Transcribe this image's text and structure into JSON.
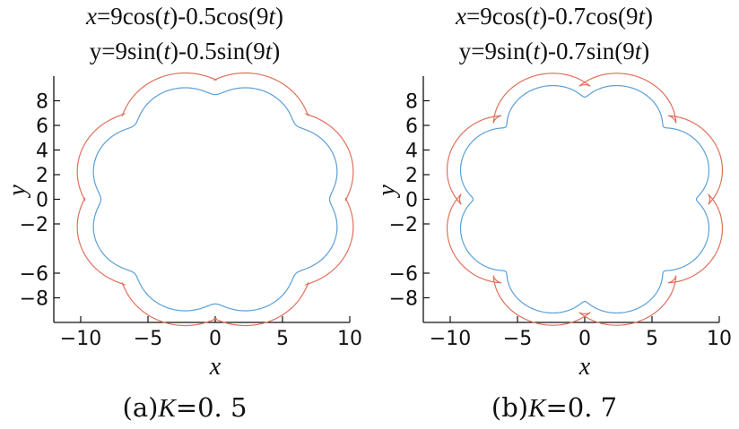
{
  "chart_data": [
    {
      "type": "line",
      "panel": "a",
      "equation_x": {
        "lhs": "x",
        "pre": "=9cos(",
        "t1": "t",
        "mid": ")-0.5cos(9",
        "t2": "t",
        "post": ")"
      },
      "equation_y": {
        "lhs": "y",
        "pre": "=9sin(",
        "t1": "t",
        "mid": ")-0.5sin(9",
        "t2": "t",
        "post": ")"
      },
      "caption": {
        "prefix": "(a)",
        "k": "K",
        "value": "=0. 5"
      },
      "xlabel": "x",
      "ylabel": "y",
      "xlim": [
        -12,
        10
      ],
      "ylim": [
        -10,
        10
      ],
      "xticks": [
        -10,
        -5,
        0,
        5,
        10
      ],
      "xtick_labels": [
        "−10",
        "−5",
        "0",
        "5",
        "10"
      ],
      "yticks": [
        8,
        6,
        4,
        2,
        0,
        -2,
        -6,
        -8
      ],
      "ytick_labels": [
        "8",
        "6",
        "4",
        "2",
        "0",
        "−2",
        "−6",
        "−8"
      ],
      "grid": false,
      "K": 0.5,
      "series": [
        {
          "color": "#e0705c",
          "a": 9,
          "b": 0.5,
          "n": 9,
          "offset": 1.2,
          "rotation_deg": 0
        },
        {
          "color": "#5b9fd6",
          "a": 9,
          "b": 0.5,
          "n": 9,
          "offset": 0,
          "rotation_deg": 0
        }
      ]
    },
    {
      "type": "line",
      "panel": "b",
      "equation_x": {
        "lhs": "x",
        "pre": "=9cos(",
        "t1": "t",
        "mid": ")-0.7cos(9",
        "t2": "t",
        "post": ")"
      },
      "equation_y": {
        "lhs": "y",
        "pre": "=9sin(",
        "t1": "t",
        "mid": ")-0.7sin(9",
        "t2": "t",
        "post": ")"
      },
      "caption": {
        "prefix": "(b)",
        "k": "K",
        "value": "=0. 7"
      },
      "xlabel": "x",
      "ylabel": "y",
      "xlim": [
        -12,
        10
      ],
      "ylim": [
        -10,
        10
      ],
      "xticks": [
        -10,
        -5,
        0,
        5,
        10
      ],
      "xtick_labels": [
        "−10",
        "−5",
        "0",
        "5",
        "10"
      ],
      "yticks": [
        8,
        6,
        4,
        2,
        0,
        -2,
        -6,
        -8
      ],
      "ytick_labels": [
        "8",
        "6",
        "4",
        "2",
        "0",
        "−2",
        "−6",
        "−8"
      ],
      "grid": false,
      "K": 0.7,
      "series": [
        {
          "color": "#e0705c",
          "a": 9,
          "b": 0.7,
          "n": 9,
          "offset": 1.0,
          "rotation_deg": 0
        },
        {
          "color": "#5b9fd6",
          "a": 9,
          "b": 0.7,
          "n": 9,
          "offset": 0,
          "rotation_deg": 0
        }
      ]
    }
  ]
}
